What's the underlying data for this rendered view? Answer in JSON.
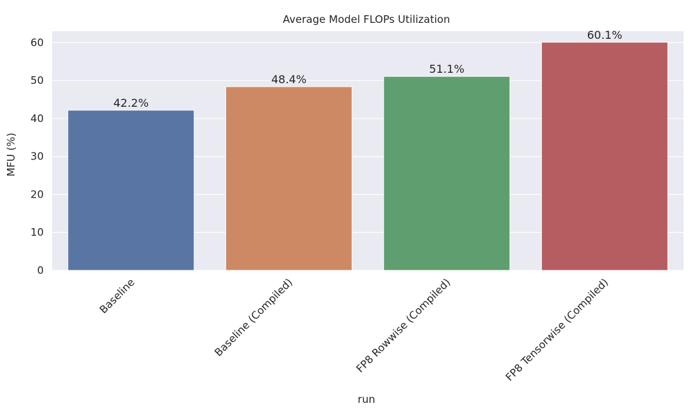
{
  "chart_data": {
    "type": "bar",
    "title": "Average Model FLOPs Utilization",
    "xlabel": "run",
    "ylabel": "MFU (%)",
    "categories": [
      "Baseline",
      "Baseline (Compiled)",
      "FP8 Rowwise (Compiled)",
      "FP8 Tensorwise (Compiled)"
    ],
    "values": [
      42.2,
      48.4,
      51.1,
      60.1
    ],
    "value_labels": [
      "42.2%",
      "48.4%",
      "51.1%",
      "60.1%"
    ],
    "bar_colors": [
      "#5975a4",
      "#cc8963",
      "#5f9e6e",
      "#b55d60"
    ],
    "ylim": [
      0,
      63
    ],
    "yticks": [
      "0",
      "10",
      "20",
      "30",
      "40",
      "50",
      "60"
    ],
    "ytick_values": [
      0,
      10,
      20,
      30,
      40,
      50,
      60
    ],
    "xtick_rotation_deg": 45,
    "grid": true,
    "background": "#eaeaf2",
    "grid_color": "#ffffff"
  }
}
